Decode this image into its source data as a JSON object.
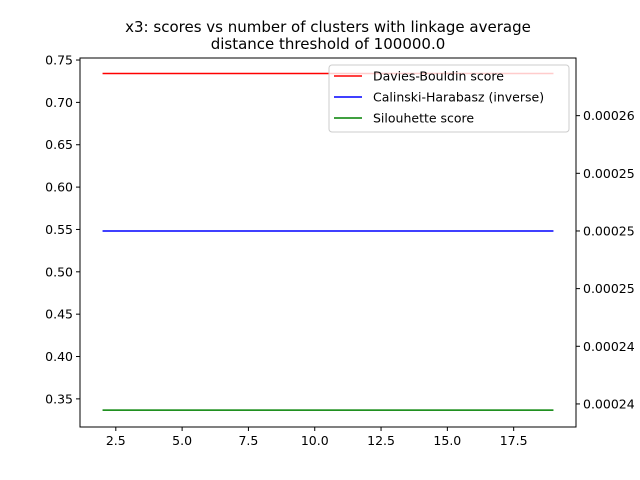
{
  "chart_data": {
    "type": "line",
    "title_line1": "x3: scores vs number of clusters with linkage average",
    "title_line2": "distance threshold of 100000.0",
    "xlabel": "",
    "ylabel_left": "",
    "ylabel_right": "",
    "xlim": [
      1.15,
      19.85
    ],
    "ylim_left": [
      0.3168,
      0.7524
    ],
    "ylim_right": [
      0.000233,
      0.000265
    ],
    "x_ticks": [
      2.5,
      5.0,
      7.5,
      10.0,
      12.5,
      15.0,
      17.5
    ],
    "x_tick_labels": [
      "2.5",
      "5.0",
      "7.5",
      "10.0",
      "12.5",
      "15.0",
      "17.5"
    ],
    "left_ticks": [
      0.35,
      0.4,
      0.45,
      0.5,
      0.55,
      0.6,
      0.65,
      0.7,
      0.75
    ],
    "left_tick_labels": [
      "0.35",
      "0.40",
      "0.45",
      "0.50",
      "0.55",
      "0.60",
      "0.65",
      "0.70",
      "0.75"
    ],
    "right_ticks": [
      0.000235,
      0.00024,
      0.000245,
      0.00025,
      0.000255,
      0.00026
    ],
    "right_tick_labels": [
      "0.00024",
      "0.00024",
      "0.00025",
      "0.00025",
      "0.00025",
      "0.00026"
    ],
    "x": [
      2,
      3,
      4,
      5,
      6,
      7,
      8,
      9,
      10,
      11,
      12,
      13,
      14,
      15,
      16,
      17,
      18,
      19
    ],
    "series": [
      {
        "name": "Davies-Bouldin score",
        "axis": "left",
        "color": "#ff0000",
        "values": [
          0.7341,
          0.7341,
          0.7341,
          0.7341,
          0.7341,
          0.7341,
          0.7341,
          0.7341,
          0.7341,
          0.7341,
          0.7341,
          0.7341,
          0.7341,
          0.7341,
          0.7341,
          0.7341,
          0.7341,
          0.7341
        ]
      },
      {
        "name": "Calinski-Harabasz (inverse)",
        "axis": "right",
        "color": "#0000ff",
        "values": [
          0.00025,
          0.00025,
          0.00025,
          0.00025,
          0.00025,
          0.00025,
          0.00025,
          0.00025,
          0.00025,
          0.00025,
          0.00025,
          0.00025,
          0.00025,
          0.00025,
          0.00025,
          0.00025,
          0.00025,
          0.00025
        ]
      },
      {
        "name": "Silouhette score",
        "axis": "left",
        "color": "#008000",
        "values": [
          0.3367,
          0.3367,
          0.3367,
          0.3367,
          0.3367,
          0.3367,
          0.3367,
          0.3367,
          0.3367,
          0.3367,
          0.3367,
          0.3367,
          0.3367,
          0.3367,
          0.3367,
          0.3367,
          0.3367,
          0.3367
        ]
      }
    ],
    "legend_placement": "upper-right",
    "grid": false
  }
}
